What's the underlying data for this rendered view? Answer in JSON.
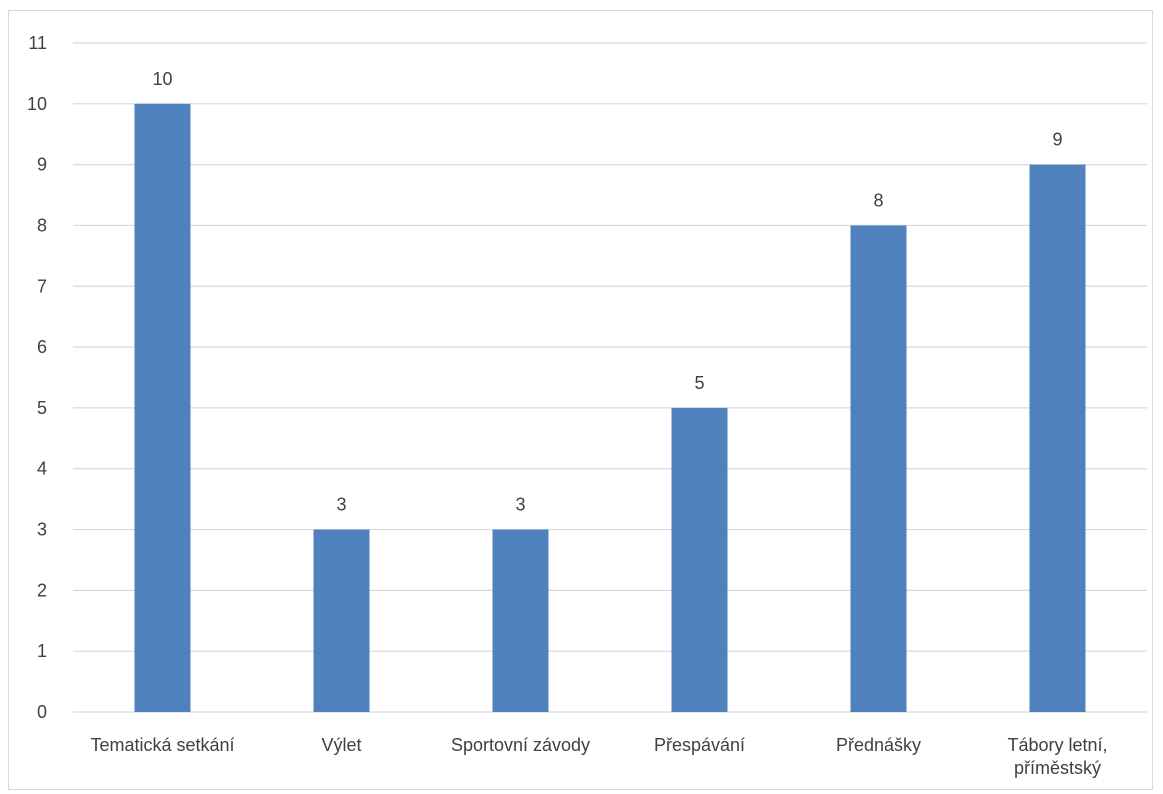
{
  "chart_data": {
    "type": "bar",
    "title": "",
    "xlabel": "",
    "ylabel": "",
    "categories": [
      [
        "Tematická setkání"
      ],
      [
        "Výlet"
      ],
      [
        "Sportovní závody"
      ],
      [
        "Přespávání"
      ],
      [
        "Přednášky"
      ],
      [
        "Tábory letní,",
        "příměstský"
      ]
    ],
    "values": [
      10,
      3,
      3,
      5,
      8,
      9
    ],
    "ylim": [
      0,
      11
    ],
    "yticks": [
      0,
      1,
      2,
      3,
      4,
      5,
      6,
      7,
      8,
      9,
      10,
      11
    ],
    "grid": true,
    "legend": "none",
    "data_labels": true,
    "colors": {
      "bar": "#4f81bd",
      "grid": "#d9d9d9",
      "text": "#404040",
      "border": "#d9d9d9"
    }
  }
}
